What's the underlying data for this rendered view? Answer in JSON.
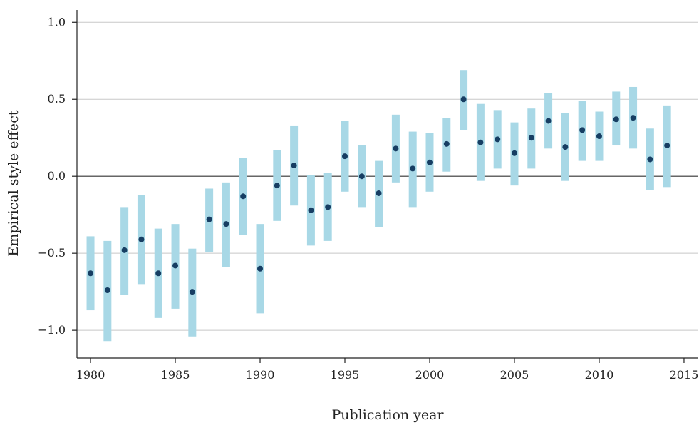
{
  "chart_data": {
    "type": "scatter",
    "title": "",
    "xlabel": "Publication year",
    "ylabel": "Empirical style effect",
    "xlim": [
      1979.2,
      2015.8
    ],
    "ylim": [
      -1.18,
      1.08
    ],
    "xticks": [
      1980,
      1985,
      1990,
      1995,
      2000,
      2005,
      2010,
      2015
    ],
    "xtick_labels": [
      "1980",
      "1985",
      "1990",
      "1995",
      "2000",
      "2005",
      "2010",
      "2015"
    ],
    "yticks": [
      1.0,
      0.5,
      0.0,
      -0.5,
      -1.0
    ],
    "ytick_labels": [
      "1.0",
      "0.5",
      "0.0",
      "−0.5",
      "−1.0"
    ],
    "grid": true,
    "reference_line_y": 0,
    "colors": {
      "interval": "#a8d8e6",
      "point": "#173e63",
      "grid": "#c8c8c8"
    },
    "series": [
      {
        "points": [
          {
            "x": 1980,
            "y": -0.63,
            "low": -0.87,
            "high": -0.39
          },
          {
            "x": 1981,
            "y": -0.74,
            "low": -1.07,
            "high": -0.42
          },
          {
            "x": 1982,
            "y": -0.48,
            "low": -0.77,
            "high": -0.2
          },
          {
            "x": 1983,
            "y": -0.41,
            "low": -0.7,
            "high": -0.12
          },
          {
            "x": 1984,
            "y": -0.63,
            "low": -0.92,
            "high": -0.34
          },
          {
            "x": 1985,
            "y": -0.58,
            "low": -0.86,
            "high": -0.31
          },
          {
            "x": 1986,
            "y": -0.75,
            "low": -1.04,
            "high": -0.47
          },
          {
            "x": 1987,
            "y": -0.28,
            "low": -0.49,
            "high": -0.08
          },
          {
            "x": 1988,
            "y": -0.31,
            "low": -0.59,
            "high": -0.04
          },
          {
            "x": 1989,
            "y": -0.13,
            "low": -0.38,
            "high": 0.12
          },
          {
            "x": 1990,
            "y": -0.6,
            "low": -0.89,
            "high": -0.31
          },
          {
            "x": 1991,
            "y": -0.06,
            "low": -0.29,
            "high": 0.17
          },
          {
            "x": 1992,
            "y": 0.07,
            "low": -0.19,
            "high": 0.33
          },
          {
            "x": 1993,
            "y": -0.22,
            "low": -0.45,
            "high": 0.01
          },
          {
            "x": 1994,
            "y": -0.2,
            "low": -0.42,
            "high": 0.02
          },
          {
            "x": 1995,
            "y": 0.13,
            "low": -0.1,
            "high": 0.36
          },
          {
            "x": 1996,
            "y": 0.0,
            "low": -0.2,
            "high": 0.2
          },
          {
            "x": 1997,
            "y": -0.11,
            "low": -0.33,
            "high": 0.1
          },
          {
            "x": 1998,
            "y": 0.18,
            "low": -0.04,
            "high": 0.4
          },
          {
            "x": 1999,
            "y": 0.05,
            "low": -0.2,
            "high": 0.29
          },
          {
            "x": 2000,
            "y": 0.09,
            "low": -0.1,
            "high": 0.28
          },
          {
            "x": 2001,
            "y": 0.21,
            "low": 0.03,
            "high": 0.38
          },
          {
            "x": 2002,
            "y": 0.5,
            "low": 0.3,
            "high": 0.69
          },
          {
            "x": 2003,
            "y": 0.22,
            "low": -0.03,
            "high": 0.47
          },
          {
            "x": 2004,
            "y": 0.24,
            "low": 0.05,
            "high": 0.43
          },
          {
            "x": 2005,
            "y": 0.15,
            "low": -0.06,
            "high": 0.35
          },
          {
            "x": 2006,
            "y": 0.25,
            "low": 0.05,
            "high": 0.44
          },
          {
            "x": 2007,
            "y": 0.36,
            "low": 0.18,
            "high": 0.54
          },
          {
            "x": 2008,
            "y": 0.19,
            "low": -0.03,
            "high": 0.41
          },
          {
            "x": 2009,
            "y": 0.3,
            "low": 0.1,
            "high": 0.49
          },
          {
            "x": 2010,
            "y": 0.26,
            "low": 0.1,
            "high": 0.42
          },
          {
            "x": 2011,
            "y": 0.37,
            "low": 0.2,
            "high": 0.55
          },
          {
            "x": 2012,
            "y": 0.38,
            "low": 0.18,
            "high": 0.58
          },
          {
            "x": 2013,
            "y": 0.11,
            "low": -0.09,
            "high": 0.31
          },
          {
            "x": 2014,
            "y": 0.2,
            "low": -0.07,
            "high": 0.46
          }
        ]
      }
    ]
  }
}
